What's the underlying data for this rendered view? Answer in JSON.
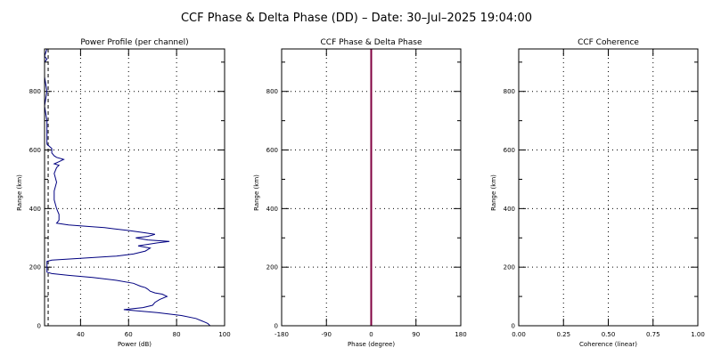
{
  "title": "CCF Phase & Delta Phase (DD) – Date: 30–Jul–2025 19:04:00",
  "chart_data": [
    {
      "type": "line",
      "title": "Power Profile (per channel)",
      "xlabel": "Power (dB)",
      "ylabel": "Range (km)",
      "xlim": [
        25,
        100
      ],
      "ylim": [
        0,
        945
      ],
      "xticks": [
        40,
        60,
        80,
        100
      ],
      "yticks": [
        0,
        200,
        400,
        600,
        800
      ],
      "grid": true,
      "series": [
        {
          "color": "#000080",
          "points": [
            [
              94,
              0
            ],
            [
              93,
              8
            ],
            [
              91,
              15
            ],
            [
              88,
              25
            ],
            [
              82,
              35
            ],
            [
              72,
              45
            ],
            [
              62,
              52
            ],
            [
              58,
              55
            ],
            [
              66,
              62
            ],
            [
              70,
              70
            ],
            [
              71,
              80
            ],
            [
              73,
              90
            ],
            [
              76,
              100
            ],
            [
              74,
              108
            ],
            [
              71,
              112
            ],
            [
              69,
              118
            ],
            [
              68,
              125
            ],
            [
              67,
              130
            ],
            [
              65,
              135
            ],
            [
              62,
              145
            ],
            [
              55,
              155
            ],
            [
              45,
              165
            ],
            [
              35,
              172
            ],
            [
              28,
              178
            ],
            [
              26,
              183
            ],
            [
              26,
              190
            ],
            [
              26,
              200
            ],
            [
              26,
              210
            ],
            [
              26,
              220
            ],
            [
              28,
              224
            ],
            [
              40,
              230
            ],
            [
              55,
              238
            ],
            [
              62,
              245
            ],
            [
              67,
              255
            ],
            [
              69,
              265
            ],
            [
              64,
              273
            ],
            [
              72,
              283
            ],
            [
              77,
              288
            ],
            [
              68,
              293
            ],
            [
              63,
              300
            ],
            [
              68,
              305
            ],
            [
              71,
              312
            ],
            [
              66,
              318
            ],
            [
              60,
              325
            ],
            [
              50,
              335
            ],
            [
              35,
              344
            ],
            [
              30,
              350
            ],
            [
              31,
              360
            ],
            [
              31,
              380
            ],
            [
              30,
              400
            ],
            [
              29,
              430
            ],
            [
              29,
              460
            ],
            [
              30,
              490
            ],
            [
              29,
              520
            ],
            [
              30,
              540
            ],
            [
              31,
              548
            ],
            [
              29,
              553
            ],
            [
              31,
              560
            ],
            [
              33,
              568
            ],
            [
              30,
              575
            ],
            [
              29,
              580
            ],
            [
              28,
              590
            ],
            [
              28,
              605
            ],
            [
              26,
              620
            ],
            [
              26,
              650
            ],
            [
              26,
              700
            ],
            [
              25,
              750
            ],
            [
              26,
              800
            ],
            [
              25,
              850
            ],
            [
              25,
              900
            ],
            [
              26,
              910
            ],
            [
              25,
              920
            ],
            [
              26,
              945
            ]
          ]
        }
      ],
      "vlines": [
        {
          "x": 26.5,
          "dash": true,
          "color": "#000000"
        }
      ]
    },
    {
      "type": "line",
      "title": "CCF Phase & Delta Phase",
      "xlabel": "Phase (degree)",
      "ylabel": "Range (km)",
      "xlim": [
        -180,
        180
      ],
      "ylim": [
        0,
        945
      ],
      "xticks": [
        -180,
        -90,
        0,
        90,
        180
      ],
      "yticks": [
        0,
        200,
        400,
        600,
        800
      ],
      "grid": true,
      "series": [],
      "vlines": [
        {
          "x": 0,
          "dash": false,
          "color": "#800040"
        }
      ]
    },
    {
      "type": "line",
      "title": "CCF Coherence",
      "xlabel": "Coherence (linear)",
      "ylabel": "Range (km)",
      "xlim": [
        0,
        1
      ],
      "ylim": [
        0,
        945
      ],
      "xticks": [
        0,
        0.25,
        0.5,
        0.75,
        1
      ],
      "xtick_labels": [
        "0.00",
        "0.25",
        "0.50",
        "0.75",
        "1.00"
      ],
      "yticks": [
        0,
        200,
        400,
        600,
        800
      ],
      "grid": true,
      "series": [],
      "vlines": []
    }
  ]
}
